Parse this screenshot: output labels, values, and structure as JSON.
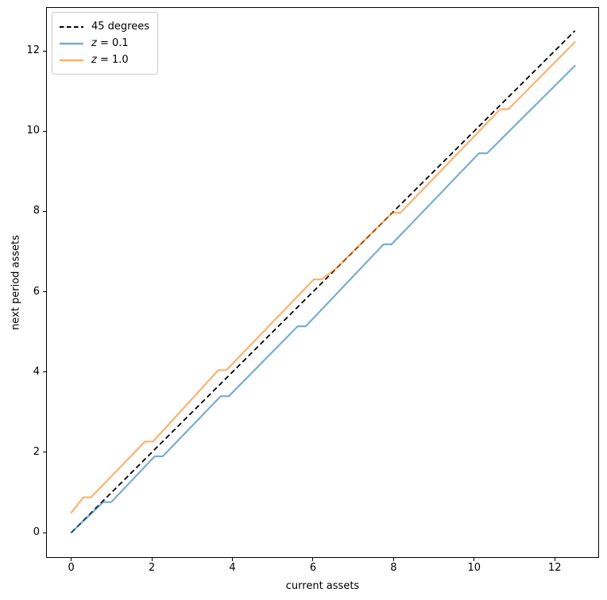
{
  "figure": {
    "xlabel": "current assets",
    "ylabel": "next period assets"
  },
  "legend": {
    "items": [
      {
        "label": "45 degrees",
        "var": "",
        "rest": ""
      },
      {
        "label": "z = 0.1",
        "var": "z",
        "rest": " = 0.1"
      },
      {
        "label": "z = 1.0",
        "var": "z",
        "rest": " = 1.0"
      }
    ]
  },
  "chart_data": {
    "type": "line",
    "title": "",
    "xlabel": "current assets",
    "ylabel": "next period assets",
    "xlim": [
      -0.625,
      13.1
    ],
    "ylim": [
      -0.63,
      13.09
    ],
    "x_ticks": [
      0,
      2,
      4,
      6,
      8,
      10,
      12
    ],
    "y_ticks": [
      0,
      2,
      4,
      6,
      8,
      10,
      12
    ],
    "grid": false,
    "legend_position": "upper left",
    "series": [
      {
        "name": "45 degrees",
        "color": "#000000",
        "rgba": "rgba(0,0,0,1)",
        "style": "dashed",
        "width": 1.8,
        "points": [
          [
            0,
            0
          ],
          [
            12.5,
            12.5
          ]
        ]
      },
      {
        "name": "z = 0.1",
        "color": "#1f77b4",
        "rgba": "rgba(31,119,180,0.6)",
        "style": "solid",
        "width": 2.2,
        "points": [
          [
            0,
            0
          ],
          [
            0.79,
            0.76
          ],
          [
            0.99,
            0.76
          ],
          [
            2.07,
            1.9
          ],
          [
            2.27,
            1.9
          ],
          [
            3.71,
            3.4
          ],
          [
            3.91,
            3.4
          ],
          [
            5.62,
            5.14
          ],
          [
            5.82,
            5.14
          ],
          [
            7.75,
            7.18
          ],
          [
            7.95,
            7.18
          ],
          [
            10.12,
            9.45
          ],
          [
            10.32,
            9.45
          ],
          [
            12.5,
            11.63
          ]
        ]
      },
      {
        "name": "z = 1.0",
        "color": "#ff7f0e",
        "rgba": "rgba(255,127,14,0.6)",
        "style": "solid",
        "width": 2.2,
        "points": [
          [
            0,
            0.5
          ],
          [
            0.3,
            0.88
          ],
          [
            0.49,
            0.88
          ],
          [
            1.83,
            2.27
          ],
          [
            2.03,
            2.27
          ],
          [
            3.65,
            4.05
          ],
          [
            3.85,
            4.05
          ],
          [
            6.02,
            6.31
          ],
          [
            6.21,
            6.31
          ],
          [
            6.55,
            6.56
          ],
          [
            7.97,
            7.97
          ],
          [
            8.17,
            7.97
          ],
          [
            10.65,
            10.55
          ],
          [
            10.85,
            10.55
          ],
          [
            12.5,
            12.22
          ]
        ]
      }
    ]
  }
}
